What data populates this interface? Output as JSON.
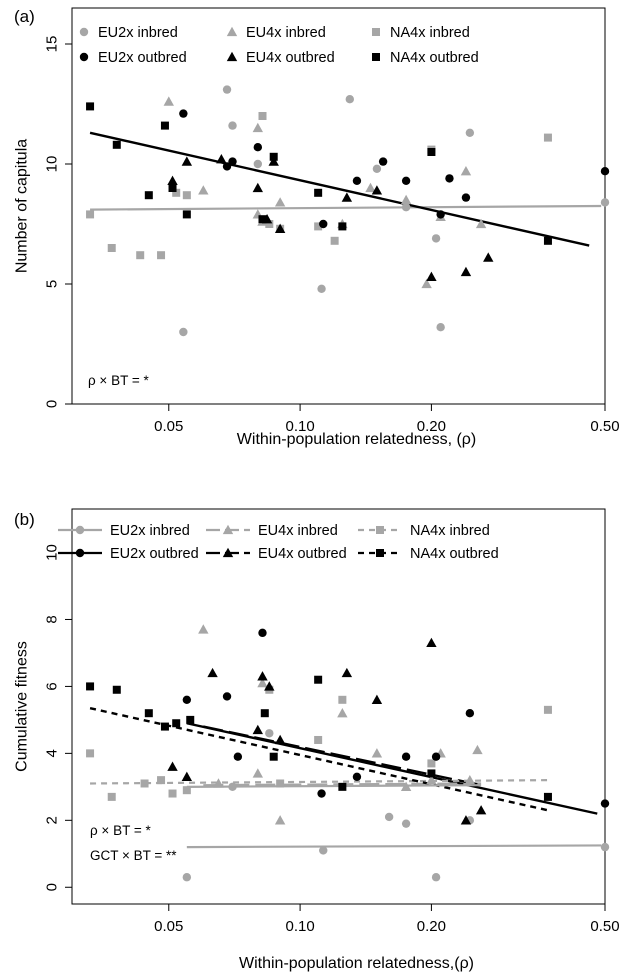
{
  "chart_data": [
    {
      "type": "scatter",
      "panel_label": "(a)",
      "xlabel": "Within-population relatedness, (ρ)",
      "ylabel": "Number of capitula",
      "xscale": "log",
      "xlim": [
        0.03,
        0.5
      ],
      "ylim": [
        0,
        16.5
      ],
      "xticks": [
        0.05,
        0.1,
        0.2,
        0.5
      ],
      "xtick_labels": [
        "0.05",
        "0.10",
        "0.20",
        "0.50"
      ],
      "yticks": [
        0,
        5,
        10,
        15
      ],
      "ytick_labels": [
        "0",
        "5",
        "10",
        "15"
      ],
      "grid": false,
      "legend_position": "top",
      "colors": {
        "inbred": "#a6a6a6",
        "outbred": "#000000"
      },
      "series": [
        {
          "name": "EU2x inbred",
          "marker": "circle",
          "color": "#a6a6a6",
          "points": [
            [
              0.054,
              3.0
            ],
            [
              0.068,
              13.1
            ],
            [
              0.07,
              11.6
            ],
            [
              0.08,
              10.0
            ],
            [
              0.112,
              4.8
            ],
            [
              0.13,
              12.7
            ],
            [
              0.15,
              9.8
            ],
            [
              0.175,
              8.2
            ],
            [
              0.205,
              6.9
            ],
            [
              0.21,
              3.2
            ],
            [
              0.245,
              11.3
            ],
            [
              0.5,
              8.4
            ]
          ]
        },
        {
          "name": "EU4x inbred",
          "marker": "triangle",
          "color": "#a6a6a6",
          "points": [
            [
              0.05,
              12.6
            ],
            [
              0.06,
              8.9
            ],
            [
              0.08,
              11.5
            ],
            [
              0.082,
              7.6
            ],
            [
              0.09,
              8.4
            ],
            [
              0.125,
              7.5
            ],
            [
              0.145,
              9.0
            ],
            [
              0.175,
              8.5
            ],
            [
              0.195,
              5.0
            ],
            [
              0.21,
              7.8
            ],
            [
              0.24,
              9.7
            ],
            [
              0.26,
              7.5
            ],
            [
              0.08,
              7.9
            ]
          ]
        },
        {
          "name": "NA4x inbred",
          "marker": "square",
          "color": "#a6a6a6",
          "points": [
            [
              0.033,
              7.9
            ],
            [
              0.037,
              6.5
            ],
            [
              0.043,
              6.2
            ],
            [
              0.048,
              6.2
            ],
            [
              0.052,
              8.8
            ],
            [
              0.055,
              8.7
            ],
            [
              0.082,
              12.0
            ],
            [
              0.085,
              7.5
            ],
            [
              0.09,
              7.3
            ],
            [
              0.11,
              7.4
            ],
            [
              0.12,
              6.8
            ],
            [
              0.2,
              10.6
            ],
            [
              0.37,
              11.1
            ]
          ]
        },
        {
          "name": "EU2x outbred",
          "marker": "circle",
          "color": "#000000",
          "points": [
            [
              0.054,
              12.1
            ],
            [
              0.068,
              9.9
            ],
            [
              0.07,
              10.1
            ],
            [
              0.08,
              10.7
            ],
            [
              0.113,
              7.5
            ],
            [
              0.135,
              9.3
            ],
            [
              0.155,
              10.1
            ],
            [
              0.175,
              9.3
            ],
            [
              0.21,
              7.9
            ],
            [
              0.22,
              9.4
            ],
            [
              0.24,
              8.6
            ],
            [
              0.5,
              9.7
            ]
          ]
        },
        {
          "name": "EU4x outbred",
          "marker": "triangle",
          "color": "#000000",
          "points": [
            [
              0.051,
              9.3
            ],
            [
              0.055,
              10.1
            ],
            [
              0.066,
              10.2
            ],
            [
              0.08,
              9.0
            ],
            [
              0.084,
              7.7
            ],
            [
              0.087,
              10.1
            ],
            [
              0.09,
              7.3
            ],
            [
              0.128,
              8.6
            ],
            [
              0.15,
              8.9
            ],
            [
              0.2,
              5.3
            ],
            [
              0.24,
              5.5
            ],
            [
              0.27,
              6.1
            ]
          ]
        },
        {
          "name": "NA4x outbred",
          "marker": "square",
          "color": "#000000",
          "points": [
            [
              0.033,
              12.4
            ],
            [
              0.038,
              10.8
            ],
            [
              0.045,
              8.7
            ],
            [
              0.049,
              11.6
            ],
            [
              0.051,
              9.0
            ],
            [
              0.055,
              7.9
            ],
            [
              0.082,
              7.7
            ],
            [
              0.087,
              10.3
            ],
            [
              0.11,
              8.8
            ],
            [
              0.125,
              7.4
            ],
            [
              0.2,
              10.5
            ],
            [
              0.37,
              6.8
            ]
          ]
        }
      ],
      "fit_lines": [
        {
          "name": "inbred fit",
          "color": "#a6a6a6",
          "style": "solid",
          "x": [
            0.033,
            0.49
          ],
          "y": [
            8.1,
            8.25
          ]
        },
        {
          "name": "outbred fit",
          "color": "#000000",
          "style": "solid",
          "x": [
            0.033,
            0.46
          ],
          "y": [
            11.3,
            6.6
          ]
        }
      ],
      "annotations": [
        "ρ × BT = *"
      ]
    },
    {
      "type": "scatter",
      "panel_label": "(b)",
      "xlabel": "Within-population relatedness,(ρ)",
      "ylabel": "Cumulative fitness",
      "xscale": "log",
      "xlim": [
        0.03,
        0.5
      ],
      "ylim": [
        -0.5,
        11.3
      ],
      "xticks": [
        0.05,
        0.1,
        0.2,
        0.5
      ],
      "xtick_labels": [
        "0.05",
        "0.10",
        "0.20",
        "0.50"
      ],
      "yticks": [
        0,
        2,
        4,
        6,
        8,
        10
      ],
      "ytick_labels": [
        "0",
        "2",
        "4",
        "6",
        "8",
        "10"
      ],
      "grid": false,
      "legend_position": "top",
      "colors": {
        "inbred": "#a6a6a6",
        "outbred": "#000000"
      },
      "series": [
        {
          "name": "EU2x inbred",
          "marker": "circle",
          "color": "#a6a6a6",
          "points": [
            [
              0.055,
              0.3
            ],
            [
              0.07,
              3.0
            ],
            [
              0.085,
              4.6
            ],
            [
              0.113,
              1.1
            ],
            [
              0.16,
              2.1
            ],
            [
              0.175,
              1.9
            ],
            [
              0.205,
              0.3
            ],
            [
              0.245,
              2.0
            ],
            [
              0.5,
              1.2
            ]
          ]
        },
        {
          "name": "EU4x inbred",
          "marker": "triangle",
          "color": "#a6a6a6",
          "points": [
            [
              0.06,
              7.7
            ],
            [
              0.065,
              3.1
            ],
            [
              0.08,
              3.4
            ],
            [
              0.082,
              6.1
            ],
            [
              0.09,
              2.0
            ],
            [
              0.125,
              5.2
            ],
            [
              0.15,
              4.0
            ],
            [
              0.175,
              3.0
            ],
            [
              0.2,
              3.2
            ],
            [
              0.21,
              4.0
            ],
            [
              0.245,
              3.2
            ],
            [
              0.255,
              4.1
            ]
          ]
        },
        {
          "name": "NA4x inbred",
          "marker": "square",
          "color": "#a6a6a6",
          "points": [
            [
              0.033,
              4.0
            ],
            [
              0.037,
              2.7
            ],
            [
              0.044,
              3.1
            ],
            [
              0.048,
              3.2
            ],
            [
              0.051,
              2.8
            ],
            [
              0.055,
              2.9
            ],
            [
              0.085,
              5.9
            ],
            [
              0.09,
              3.1
            ],
            [
              0.11,
              4.4
            ],
            [
              0.125,
              5.6
            ],
            [
              0.2,
              3.7
            ],
            [
              0.37,
              5.3
            ]
          ]
        },
        {
          "name": "EU2x outbred",
          "marker": "circle",
          "color": "#000000",
          "points": [
            [
              0.055,
              5.6
            ],
            [
              0.068,
              5.7
            ],
            [
              0.072,
              3.9
            ],
            [
              0.082,
              7.6
            ],
            [
              0.112,
              2.8
            ],
            [
              0.135,
              3.3
            ],
            [
              0.175,
              3.9
            ],
            [
              0.205,
              3.9
            ],
            [
              0.245,
              5.2
            ],
            [
              0.5,
              2.5
            ]
          ]
        },
        {
          "name": "EU4x outbred",
          "marker": "triangle",
          "color": "#000000",
          "points": [
            [
              0.051,
              3.6
            ],
            [
              0.055,
              3.3
            ],
            [
              0.063,
              6.4
            ],
            [
              0.08,
              4.7
            ],
            [
              0.082,
              6.3
            ],
            [
              0.085,
              6.0
            ],
            [
              0.09,
              4.4
            ],
            [
              0.128,
              6.4
            ],
            [
              0.15,
              5.6
            ],
            [
              0.2,
              7.3
            ],
            [
              0.24,
              2.0
            ],
            [
              0.26,
              2.3
            ]
          ]
        },
        {
          "name": "NA4x outbred",
          "marker": "square",
          "color": "#000000",
          "points": [
            [
              0.033,
              6.0
            ],
            [
              0.038,
              5.9
            ],
            [
              0.045,
              5.2
            ],
            [
              0.049,
              4.8
            ],
            [
              0.052,
              4.9
            ],
            [
              0.056,
              5.0
            ],
            [
              0.083,
              5.2
            ],
            [
              0.087,
              3.9
            ],
            [
              0.11,
              6.2
            ],
            [
              0.125,
              3.0
            ],
            [
              0.2,
              3.4
            ],
            [
              0.37,
              2.7
            ]
          ]
        }
      ],
      "fit_lines": [
        {
          "name": "EU2x inbred",
          "color": "#a6a6a6",
          "style": "solid",
          "x": [
            0.055,
            0.49
          ],
          "y": [
            1.2,
            1.25
          ]
        },
        {
          "name": "EU2x outbred",
          "color": "#000000",
          "style": "solid",
          "x": [
            0.055,
            0.48
          ],
          "y": [
            4.9,
            2.2
          ]
        },
        {
          "name": "EU4x inbred",
          "color": "#a6a6a6",
          "style": "longdash",
          "x": [
            0.06,
            0.26
          ],
          "y": [
            3.05,
            3.1
          ]
        },
        {
          "name": "EU4x outbred",
          "color": "#000000",
          "style": "longdash",
          "x": [
            0.06,
            0.26
          ],
          "y": [
            4.8,
            3.05
          ]
        },
        {
          "name": "NA4x inbred",
          "color": "#a6a6a6",
          "style": "dash",
          "x": [
            0.033,
            0.37
          ],
          "y": [
            3.1,
            3.2
          ]
        },
        {
          "name": "NA4x outbred",
          "color": "#000000",
          "style": "dash",
          "x": [
            0.033,
            0.37
          ],
          "y": [
            5.35,
            2.3
          ]
        },
        {
          "name": "EU2x inbred mid",
          "color": "#a6a6a6",
          "style": "solid",
          "x": [
            0.055,
            0.26
          ],
          "y": [
            3.0,
            3.05
          ]
        }
      ],
      "annotations": [
        "ρ × BT = *",
        "GCT × BT = **"
      ]
    }
  ]
}
